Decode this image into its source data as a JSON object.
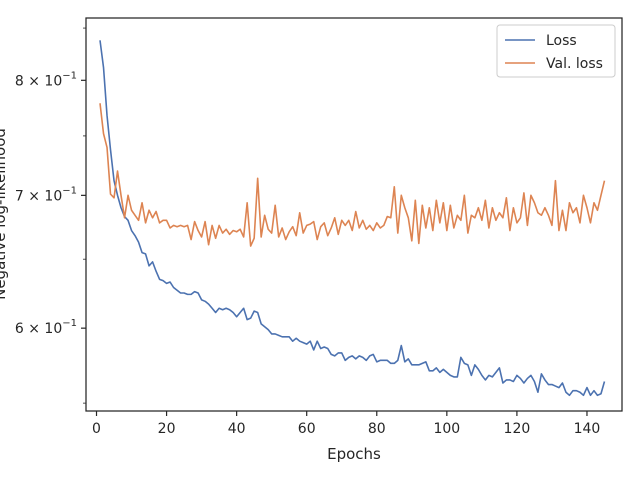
{
  "chart_data": {
    "type": "line",
    "title": "",
    "xlabel": "Epochs",
    "ylabel": "Negative log-likelihood",
    "xlim": [
      -3,
      150
    ],
    "ylim": [
      0.545,
      0.86
    ],
    "yscale": "log",
    "grid": false,
    "legend_position": "top-right",
    "x_ticks": [
      0,
      20,
      40,
      60,
      80,
      100,
      120,
      140
    ],
    "y_ticks": [
      {
        "value": 0.6,
        "mantissa": "6",
        "base": "10",
        "exp": "−1"
      },
      {
        "value": 0.7,
        "mantissa": "7",
        "base": "10",
        "exp": "−1"
      },
      {
        "value": 0.8,
        "mantissa": "8",
        "base": "10",
        "exp": "−1"
      }
    ],
    "series": [
      {
        "name": "Loss",
        "color": "#4c72b0",
        "x_start": 1,
        "values": [
          0.838,
          0.812,
          0.768,
          0.738,
          0.712,
          0.7,
          0.69,
          0.683,
          0.68,
          0.672,
          0.668,
          0.663,
          0.655,
          0.654,
          0.645,
          0.648,
          0.641,
          0.635,
          0.634,
          0.632,
          0.633,
          0.629,
          0.627,
          0.625,
          0.625,
          0.624,
          0.624,
          0.626,
          0.625,
          0.62,
          0.619,
          0.617,
          0.614,
          0.611,
          0.614,
          0.613,
          0.614,
          0.613,
          0.611,
          0.608,
          0.611,
          0.614,
          0.606,
          0.607,
          0.612,
          0.611,
          0.603,
          0.601,
          0.599,
          0.596,
          0.596,
          0.595,
          0.594,
          0.594,
          0.594,
          0.591,
          0.593,
          0.591,
          0.59,
          0.589,
          0.591,
          0.585,
          0.591,
          0.586,
          0.587,
          0.586,
          0.582,
          0.581,
          0.583,
          0.583,
          0.578,
          0.58,
          0.581,
          0.579,
          0.581,
          0.58,
          0.578,
          0.581,
          0.582,
          0.577,
          0.578,
          0.578,
          0.578,
          0.576,
          0.576,
          0.578,
          0.588,
          0.577,
          0.579,
          0.575,
          0.575,
          0.575,
          0.576,
          0.577,
          0.571,
          0.571,
          0.573,
          0.57,
          0.572,
          0.57,
          0.568,
          0.567,
          0.567,
          0.58,
          0.576,
          0.575,
          0.568,
          0.575,
          0.572,
          0.568,
          0.565,
          0.568,
          0.567,
          0.57,
          0.573,
          0.563,
          0.565,
          0.565,
          0.564,
          0.568,
          0.566,
          0.563,
          0.566,
          0.568,
          0.564,
          0.557,
          0.569,
          0.565,
          0.562,
          0.562,
          0.561,
          0.56,
          0.563,
          0.557,
          0.555,
          0.558,
          0.558,
          0.557,
          0.555,
          0.56,
          0.555,
          0.558,
          0.555,
          0.556,
          0.564
        ]
      },
      {
        "name": "Val. loss",
        "color": "#dd8452",
        "x_start": 1,
        "values": [
          0.779,
          0.752,
          0.74,
          0.701,
          0.698,
          0.72,
          0.7,
          0.682,
          0.7,
          0.688,
          0.684,
          0.68,
          0.694,
          0.678,
          0.688,
          0.682,
          0.687,
          0.678,
          0.68,
          0.68,
          0.674,
          0.676,
          0.675,
          0.676,
          0.675,
          0.676,
          0.665,
          0.679,
          0.672,
          0.667,
          0.679,
          0.661,
          0.676,
          0.666,
          0.676,
          0.67,
          0.673,
          0.669,
          0.672,
          0.671,
          0.673,
          0.667,
          0.694,
          0.66,
          0.666,
          0.714,
          0.667,
          0.684,
          0.673,
          0.67,
          0.692,
          0.667,
          0.674,
          0.665,
          0.671,
          0.675,
          0.668,
          0.686,
          0.67,
          0.676,
          0.677,
          0.679,
          0.665,
          0.675,
          0.678,
          0.668,
          0.674,
          0.682,
          0.669,
          0.68,
          0.676,
          0.68,
          0.672,
          0.687,
          0.674,
          0.68,
          0.673,
          0.676,
          0.672,
          0.678,
          0.674,
          0.676,
          0.683,
          0.682,
          0.707,
          0.67,
          0.7,
          0.69,
          0.682,
          0.664,
          0.696,
          0.662,
          0.692,
          0.674,
          0.69,
          0.672,
          0.696,
          0.678,
          0.694,
          0.672,
          0.692,
          0.674,
          0.684,
          0.68,
          0.7,
          0.67,
          0.684,
          0.682,
          0.69,
          0.68,
          0.696,
          0.674,
          0.69,
          0.68,
          0.686,
          0.682,
          0.698,
          0.672,
          0.69,
          0.678,
          0.682,
          0.702,
          0.676,
          0.7,
          0.694,
          0.686,
          0.684,
          0.69,
          0.684,
          0.676,
          0.712,
          0.672,
          0.688,
          0.672,
          0.694,
          0.686,
          0.69,
          0.678,
          0.7,
          0.69,
          0.678,
          0.694,
          0.688,
          0.7,
          0.712
        ]
      }
    ]
  }
}
